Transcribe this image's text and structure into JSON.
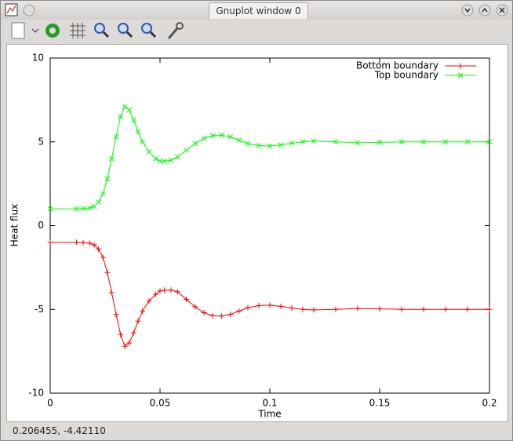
{
  "window_title": "Gnuplot window 0",
  "status": "0.206455, -4.42110",
  "chart_data": {
    "type": "line",
    "xlabel": "Time",
    "ylabel": "Heat flux",
    "x": [
      0,
      0.012,
      0.015,
      0.018,
      0.02,
      0.022,
      0.024,
      0.026,
      0.028,
      0.03,
      0.032,
      0.034,
      0.036,
      0.038,
      0.04,
      0.042,
      0.045,
      0.048,
      0.05,
      0.052,
      0.055,
      0.058,
      0.062,
      0.066,
      0.07,
      0.074,
      0.078,
      0.082,
      0.086,
      0.09,
      0.095,
      0.1,
      0.105,
      0.11,
      0.115,
      0.12,
      0.13,
      0.14,
      0.15,
      0.16,
      0.17,
      0.18,
      0.19,
      0.2
    ],
    "series": [
      {
        "name": "Bottom boundary",
        "color": "#ff0000",
        "marker": "plus",
        "values": [
          -1,
          -1,
          -1.02,
          -1.05,
          -1.15,
          -1.4,
          -1.9,
          -2.8,
          -4.0,
          -5.3,
          -6.5,
          -7.2,
          -7.0,
          -6.4,
          -5.7,
          -5.1,
          -4.5,
          -4.1,
          -3.9,
          -3.85,
          -3.85,
          -3.95,
          -4.4,
          -4.85,
          -5.2,
          -5.38,
          -5.4,
          -5.3,
          -5.1,
          -4.9,
          -4.78,
          -4.75,
          -4.82,
          -4.92,
          -5.0,
          -5.03,
          -5.0,
          -4.95,
          -4.97,
          -5.0,
          -5.0,
          -5.0,
          -5.0,
          -5.0
        ]
      },
      {
        "name": "Top boundary",
        "color": "#00ff00",
        "marker": "cross",
        "values": [
          1,
          1,
          1.02,
          1.05,
          1.15,
          1.4,
          1.9,
          2.8,
          4.0,
          5.3,
          6.5,
          7.1,
          6.9,
          6.3,
          5.6,
          5.0,
          4.4,
          4.0,
          3.85,
          3.85,
          3.9,
          4.1,
          4.5,
          4.9,
          5.2,
          5.38,
          5.4,
          5.3,
          5.1,
          4.9,
          4.78,
          4.75,
          4.82,
          4.92,
          5.0,
          5.05,
          5.0,
          4.95,
          4.97,
          5.0,
          5.0,
          5.0,
          5.0,
          5.0
        ]
      }
    ],
    "xlim": [
      0,
      0.2
    ],
    "xticks": [
      0,
      0.05,
      0.1,
      0.15,
      0.2
    ],
    "ylim": [
      -10,
      10
    ],
    "yticks": [
      -10,
      -5,
      0,
      5,
      10
    ],
    "grid": false,
    "legend": "top-right"
  }
}
